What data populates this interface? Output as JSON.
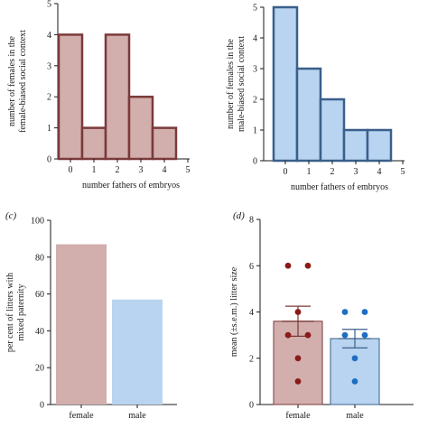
{
  "colors": {
    "female_fill": "#d2aeac",
    "female_stroke": "#7a3a3a",
    "male_fill": "#b9d4f0",
    "male_stroke": "#3a5f8a",
    "female_dot": "#8b1a1a",
    "male_dot": "#1f6ec4",
    "axis": "#1a1a1a"
  },
  "chart_data": [
    {
      "type": "bar",
      "panel": "a",
      "panel_label": "",
      "categories": [
        "0",
        "1",
        "2",
        "3",
        "4",
        "5"
      ],
      "values": [
        4,
        1,
        4,
        2,
        1,
        0
      ],
      "xlabel": "number fathers of embryos",
      "ylabel": [
        "number of females in the",
        "female-biased social context"
      ],
      "ylim": [
        0,
        5
      ],
      "yticks": [
        "0",
        "1",
        "2",
        "3",
        "4",
        "5"
      ],
      "grid": false,
      "color": "female"
    },
    {
      "type": "bar",
      "panel": "b",
      "panel_label": "",
      "categories": [
        "0",
        "1",
        "2",
        "3",
        "4",
        "5"
      ],
      "values": [
        5,
        3,
        2,
        1,
        1,
        0
      ],
      "xlabel": "number fathers of embryos",
      "ylabel": [
        "number of females in the",
        "male-biased social context"
      ],
      "ylim": [
        0,
        5
      ],
      "yticks": [
        "0",
        "1",
        "2",
        "3",
        "4",
        "5"
      ],
      "grid": false,
      "color": "male"
    },
    {
      "type": "bar",
      "panel": "c",
      "panel_label": "(c)",
      "categories": [
        "female",
        "male"
      ],
      "values": [
        87,
        57
      ],
      "xlabel": "",
      "ylabel": [
        "per cent of litters with",
        "mixed paternity"
      ],
      "ylim": [
        0,
        100
      ],
      "yticks": [
        "0",
        "20",
        "40",
        "60",
        "80",
        "100"
      ],
      "grid": false
    },
    {
      "type": "bar",
      "panel": "d",
      "panel_label": "(d)",
      "categories": [
        "female",
        "male"
      ],
      "values": [
        3.6,
        2.85
      ],
      "errors": [
        0.65,
        0.4
      ],
      "points": [
        [
          6,
          6,
          4,
          3,
          3,
          2,
          1
        ],
        [
          4,
          4,
          3,
          3,
          2,
          1
        ]
      ],
      "xlabel": "",
      "ylabel": [
        "mean (±s.e.m.) litter size"
      ],
      "ylim": [
        0,
        8
      ],
      "yticks": [
        "0",
        "2",
        "4",
        "6",
        "8"
      ],
      "grid": false
    }
  ]
}
